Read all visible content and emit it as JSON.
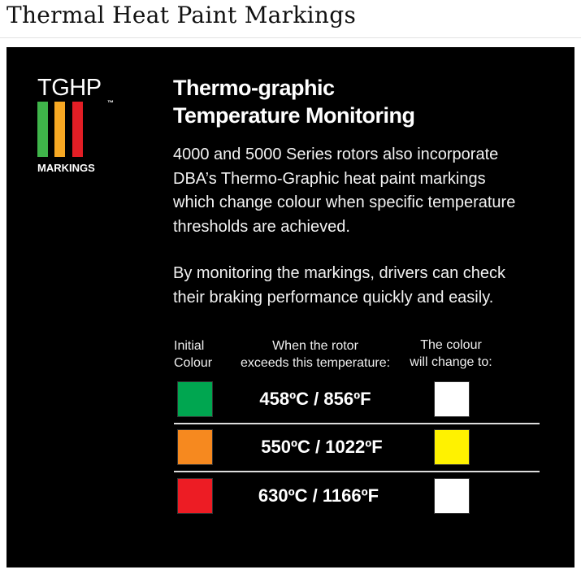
{
  "page": {
    "title": "Thermal Heat Paint Markings"
  },
  "logo": {
    "text": "TGHP",
    "tm": "™",
    "subtitle": "MARKINGS",
    "bar_colors": [
      "#3fb54a",
      "#f7a823",
      "#e31e25"
    ]
  },
  "heading": {
    "line1": "Thermo-graphic",
    "line2": "Temperature Monitoring"
  },
  "paragraphs": [
    [
      "4000 and 5000 Series rotors also incorporate",
      "DBA’s Thermo-Graphic heat paint markings",
      "which change colour when specific temperature",
      "thresholds are achieved."
    ],
    [
      "By monitoring the markings, drivers can check",
      "their braking performance quickly and easily."
    ]
  ],
  "table": {
    "headers": [
      [
        "Initial",
        "Colour"
      ],
      [
        "When the rotor",
        "exceeds this temperature:"
      ],
      [
        "The colour",
        "will change to:"
      ]
    ],
    "rows": [
      {
        "initial_color": "#00a650",
        "temperature": "458ºC / 856ºF",
        "new_color": "#ffffff"
      },
      {
        "initial_color": "#f6891f",
        "temperature": "550ºC / 1022ºF",
        "new_color": "#fff200"
      },
      {
        "initial_color": "#ed1c24",
        "temperature": "630ºC / 1166ºF",
        "new_color": "#ffffff"
      }
    ]
  }
}
